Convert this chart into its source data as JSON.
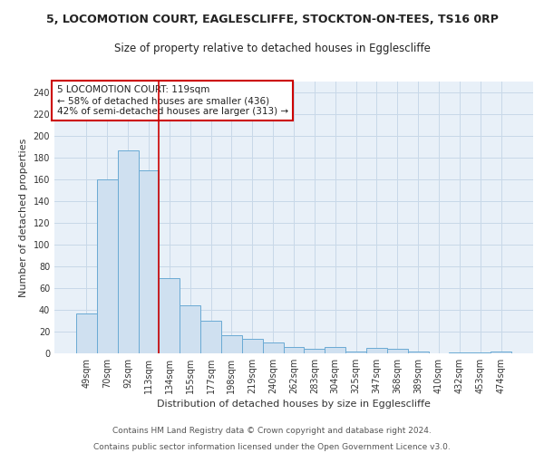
{
  "title": "5, LOCOMOTION COURT, EAGLESCLIFFE, STOCKTON-ON-TEES, TS16 0RP",
  "subtitle": "Size of property relative to detached houses in Egglescliffe",
  "xlabel": "Distribution of detached houses by size in Egglescliffe",
  "ylabel": "Number of detached properties",
  "categories": [
    "49sqm",
    "70sqm",
    "92sqm",
    "113sqm",
    "134sqm",
    "155sqm",
    "177sqm",
    "198sqm",
    "219sqm",
    "240sqm",
    "262sqm",
    "283sqm",
    "304sqm",
    "325sqm",
    "347sqm",
    "368sqm",
    "389sqm",
    "410sqm",
    "432sqm",
    "453sqm",
    "474sqm"
  ],
  "values": [
    37,
    160,
    187,
    168,
    69,
    44,
    30,
    17,
    13,
    10,
    6,
    4,
    6,
    2,
    5,
    4,
    2,
    0,
    1,
    1,
    2
  ],
  "bar_color": "#cfe0f0",
  "bar_edge_color": "#6aaad4",
  "vline_x": 3.5,
  "vline_color": "#cc0000",
  "annotation_text": "5 LOCOMOTION COURT: 119sqm\n← 58% of detached houses are smaller (436)\n42% of semi-detached houses are larger (313) →",
  "annotation_box_color": "#ffffff",
  "annotation_box_edge_color": "#cc0000",
  "ylim": [
    0,
    250
  ],
  "yticks": [
    0,
    20,
    40,
    60,
    80,
    100,
    120,
    140,
    160,
    180,
    200,
    220,
    240
  ],
  "grid_color": "#c8d8e8",
  "background_color": "#e8f0f8",
  "footer_line1": "Contains HM Land Registry data © Crown copyright and database right 2024.",
  "footer_line2": "Contains public sector information licensed under the Open Government Licence v3.0.",
  "title_fontsize": 9,
  "subtitle_fontsize": 8.5,
  "axis_label_fontsize": 8,
  "tick_fontsize": 7,
  "annotation_fontsize": 7.5,
  "footer_fontsize": 6.5
}
